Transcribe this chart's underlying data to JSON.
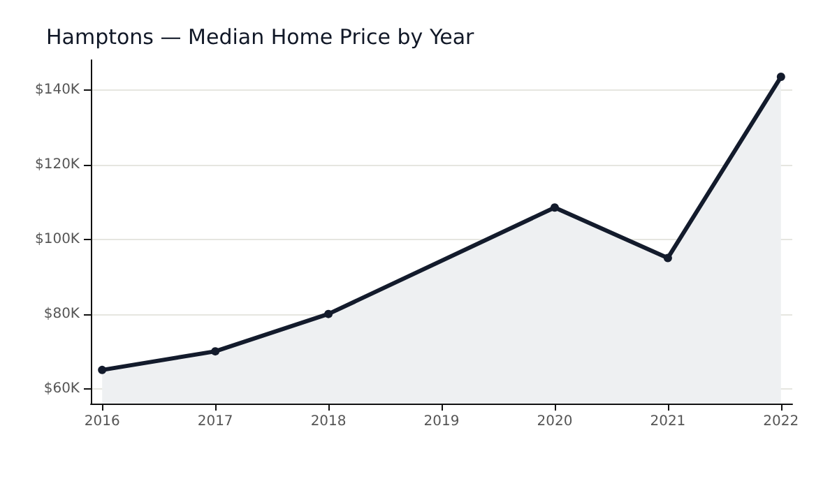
{
  "chart_data": {
    "type": "area",
    "title": "Hamptons — Median Home Price by Year",
    "x": [
      2016,
      2017,
      2018,
      2020,
      2021,
      2022
    ],
    "series": [
      {
        "color": "#131b2c",
        "values": [
          65000,
          70000,
          80000,
          108500,
          95000,
          143500
        ]
      }
    ],
    "xlim": [
      2015.9,
      2022.1
    ],
    "xticks": [
      2016,
      2017,
      2018,
      2019,
      2020,
      2021,
      2022
    ],
    "ylim": [
      56000,
      148000
    ],
    "yticks": [
      {
        "value": 60000,
        "label": "$60K"
      },
      {
        "value": 80000,
        "label": "$80K"
      },
      {
        "value": 100000,
        "label": "$100K"
      },
      {
        "value": 120000,
        "label": "$120K"
      },
      {
        "value": 140000,
        "label": "$140K"
      }
    ],
    "grid": "y",
    "marker": "circle",
    "line_style": "solid"
  }
}
